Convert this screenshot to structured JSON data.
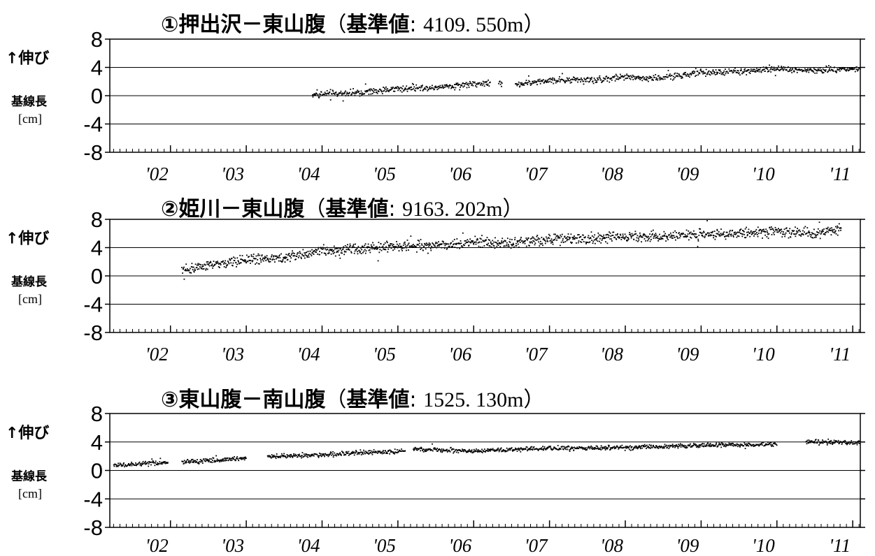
{
  "chart_data": [
    {
      "type": "scatter",
      "title_marker": "①",
      "title_pair": "押出沢－東山腹",
      "title_ref_label": "基準値",
      "title_ref_value": "4109. 550m",
      "ylabel_top": "↑伸び",
      "ylabel_mid": "基線長",
      "ylabel_unit": "[cm]",
      "ylim": [
        -8,
        8
      ],
      "yticks": [
        "8",
        "4",
        "0",
        "-4",
        "-8"
      ],
      "xlim": [
        2001.2,
        2011.1
      ],
      "xtick_labels": [
        "'02",
        "'03",
        "'04",
        "'05",
        "'06",
        "'07",
        "'08",
        "'09",
        "'10",
        "'11"
      ],
      "grid": true,
      "trend": [
        [
          2003.87,
          0.2
        ],
        [
          2004.5,
          0.4
        ],
        [
          2005.0,
          1.0
        ],
        [
          2005.5,
          1.2
        ],
        [
          2006.2,
          1.8
        ],
        [
          2006.6,
          1.6
        ],
        [
          2007.0,
          2.2
        ],
        [
          2007.5,
          2.2
        ],
        [
          2008.0,
          2.6
        ],
        [
          2008.5,
          2.5
        ],
        [
          2009.0,
          3.2
        ],
        [
          2009.5,
          3.4
        ],
        [
          2010.0,
          3.8
        ],
        [
          2010.5,
          3.5
        ],
        [
          2011.1,
          3.9
        ]
      ],
      "coverage": [
        [
          2003.87,
          2006.22
        ],
        [
          2006.33,
          2006.38
        ],
        [
          2006.55,
          2011.1
        ]
      ],
      "noise": 0.45,
      "density": 140
    },
    {
      "type": "scatter",
      "title_marker": "②",
      "title_pair": "姫川－東山腹",
      "title_ref_label": "基準値",
      "title_ref_value": "9163. 202m",
      "ylabel_top": "↑伸び",
      "ylabel_mid": "基線長",
      "ylabel_unit": "[cm]",
      "ylim": [
        -8,
        8
      ],
      "yticks": [
        "8",
        "4",
        "0",
        "-4",
        "-8"
      ],
      "xlim": [
        2001.2,
        2011.1
      ],
      "xtick_labels": [
        "'02",
        "'03",
        "'04",
        "'05",
        "'06",
        "'07",
        "'08",
        "'09",
        "'10",
        "'11"
      ],
      "grid": true,
      "trend": [
        [
          2002.15,
          0.8
        ],
        [
          2002.5,
          1.4
        ],
        [
          2003.0,
          2.3
        ],
        [
          2003.5,
          2.6
        ],
        [
          2004.0,
          3.5
        ],
        [
          2004.5,
          3.8
        ],
        [
          2005.0,
          4.3
        ],
        [
          2005.5,
          4.3
        ],
        [
          2006.0,
          4.8
        ],
        [
          2006.5,
          4.6
        ],
        [
          2007.0,
          5.2
        ],
        [
          2007.5,
          5.2
        ],
        [
          2008.0,
          5.6
        ],
        [
          2008.5,
          5.5
        ],
        [
          2009.0,
          5.9
        ],
        [
          2009.5,
          6.0
        ],
        [
          2010.0,
          6.3
        ],
        [
          2010.5,
          6.1
        ],
        [
          2010.85,
          6.6
        ]
      ],
      "coverage": [
        [
          2002.15,
          2010.85
        ]
      ],
      "noise": 0.7,
      "density": 160
    },
    {
      "type": "scatter",
      "title_marker": "③",
      "title_pair": "東山腹－南山腹",
      "title_ref_label": "基準値",
      "title_ref_value": "1525. 130m",
      "ylabel_top": "↑伸び",
      "ylabel_mid": "基線長",
      "ylabel_unit": "[cm]",
      "ylim": [
        -8,
        8
      ],
      "yticks": [
        "8",
        "4",
        "0",
        "-4",
        "-8"
      ],
      "xlim": [
        2001.2,
        2011.1
      ],
      "xtick_labels": [
        "'02",
        "'03",
        "'04",
        "'05",
        "'06",
        "'07",
        "'08",
        "'09",
        "'10",
        "'11"
      ],
      "grid": true,
      "trend": [
        [
          2001.25,
          0.7
        ],
        [
          2002.0,
          1.1
        ],
        [
          2002.5,
          1.4
        ],
        [
          2003.0,
          1.7
        ],
        [
          2003.3,
          2.0
        ],
        [
          2004.0,
          2.2
        ],
        [
          2005.0,
          2.7
        ],
        [
          2005.2,
          3.0
        ],
        [
          2006.0,
          2.7
        ],
        [
          2007.0,
          3.1
        ],
        [
          2008.0,
          3.2
        ],
        [
          2009.0,
          3.5
        ],
        [
          2010.0,
          3.7
        ],
        [
          2010.4,
          4.0
        ],
        [
          2011.1,
          3.9
        ]
      ],
      "coverage": [
        [
          2001.25,
          2001.97
        ],
        [
          2002.15,
          2003.0
        ],
        [
          2003.28,
          2005.1
        ],
        [
          2005.2,
          2010.0
        ],
        [
          2010.38,
          2011.1
        ]
      ],
      "noise": 0.3,
      "density": 150
    }
  ]
}
